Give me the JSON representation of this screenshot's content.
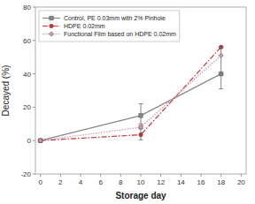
{
  "chart_data": {
    "type": "line",
    "xlabel": "Storage day",
    "ylabel": "Decayed (%)",
    "x": [
      0,
      10,
      18
    ],
    "xlim": [
      -0.5,
      20.5
    ],
    "ylim": [
      -20,
      80
    ],
    "xticks": [
      0,
      2,
      4,
      6,
      8,
      10,
      12,
      14,
      16,
      18,
      20
    ],
    "yticks": [
      -20,
      0,
      20,
      40,
      60,
      80
    ],
    "grid": false,
    "legend": "upper left",
    "series": [
      {
        "name": "Control, PE 0.03mm with 2% Pinhole",
        "color": "#888888",
        "marker": "square",
        "line_style": "solid",
        "values": [
          0,
          15,
          40
        ],
        "error_low": [
          0,
          5,
          0
        ],
        "error_high": [
          0,
          7,
          0
        ]
      },
      {
        "name": "HDPE 0.02mm",
        "color": "#cc3333",
        "marker": "circle",
        "line_style": "dashdot",
        "values": [
          0,
          3.5,
          56
        ],
        "error_low": [
          0,
          3,
          0
        ],
        "error_high": [
          0,
          4,
          0
        ]
      },
      {
        "name": "Functional Film based on HDPE 0.02mm",
        "color": "#cc99aa",
        "marker": "diamond",
        "line_style": "dotted",
        "values": [
          0,
          8,
          51
        ],
        "error_low": [
          0,
          1,
          20
        ],
        "error_high": [
          0,
          1,
          5
        ]
      }
    ]
  }
}
